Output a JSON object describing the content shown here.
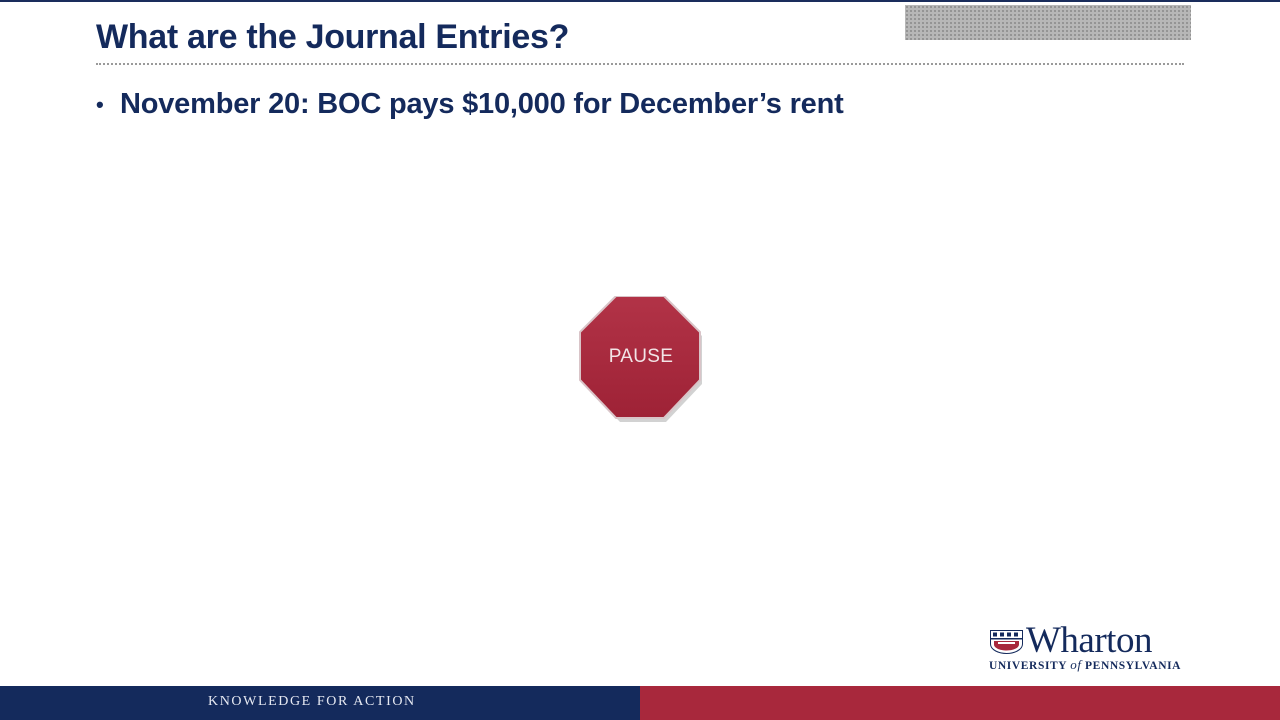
{
  "slide": {
    "title": "What are the Journal Entries?",
    "bullets": [
      "November 20: BOC pays $10,000 for December’s rent"
    ]
  },
  "stop_sign": {
    "label": "PAUSE",
    "fill_color": "#a8283c",
    "icon": "stop-sign-icon"
  },
  "branding": {
    "logo_word": "Wharton",
    "logo_sub_before": "UNIVERSITY ",
    "logo_sub_of": "of",
    "logo_sub_after": " PENNSYLVANIA",
    "logo_icon": "penn-shield-icon",
    "footer_tagline": "KNOWLEDGE FOR ACTION"
  },
  "colors": {
    "navy": "#142a5c",
    "red": "#a8283c"
  }
}
